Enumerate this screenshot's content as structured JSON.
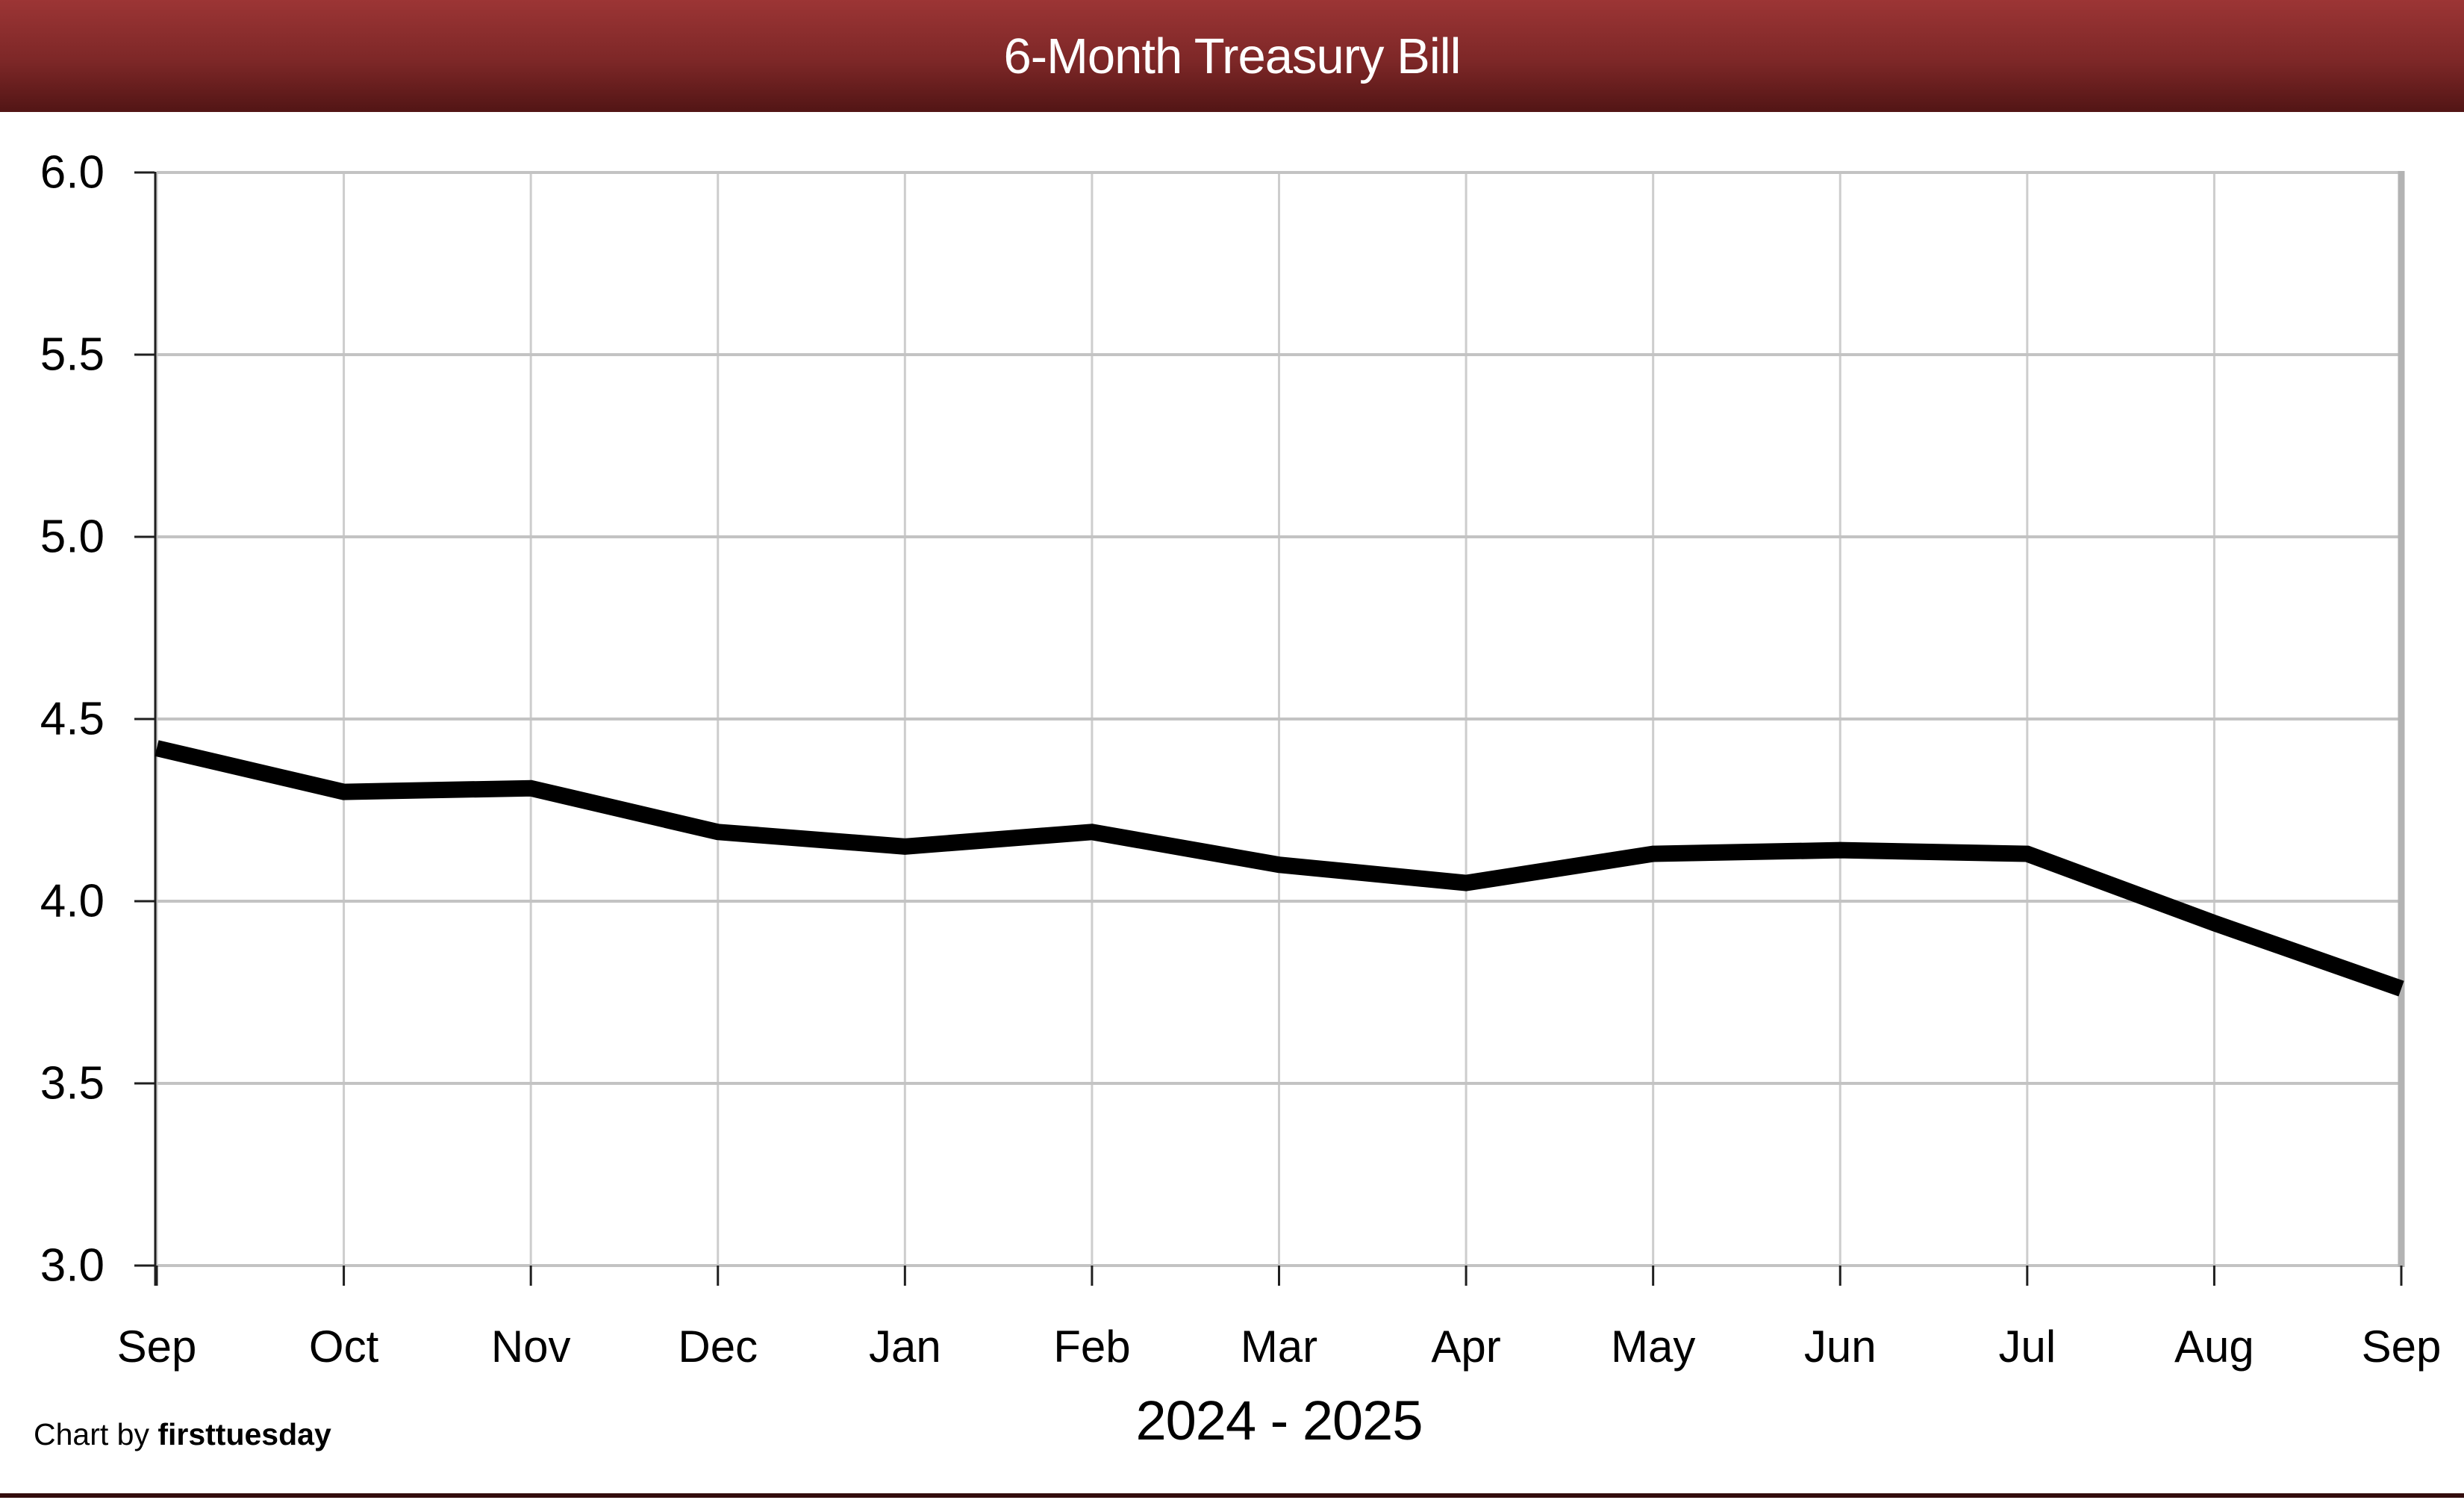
{
  "header": {
    "title": "6-Month Treasury Bill",
    "gradient_top": "#9c3535",
    "gradient_mid": "#7d2727",
    "gradient_bottom": "#521515",
    "text_color": "#ffffff"
  },
  "chart_data": {
    "type": "line",
    "title": "6-Month Treasury Bill",
    "categories": [
      "Sep",
      "Oct",
      "Nov",
      "Dec",
      "Jan",
      "Feb",
      "Mar",
      "Apr",
      "May",
      "Jun",
      "Jul",
      "Aug",
      "Sep"
    ],
    "values": [
      4.42,
      4.3,
      4.31,
      4.19,
      4.15,
      4.19,
      4.1,
      4.05,
      4.13,
      4.14,
      4.13,
      3.94,
      3.76
    ],
    "x_axis_label": "2024 - 2025",
    "xlabel": "2024 - 2025",
    "ylabel": "",
    "ylim": [
      3.0,
      6.0
    ],
    "ytick_step": 0.5,
    "ytick_labels": [
      "3.0",
      "3.5",
      "4.0",
      "4.5",
      "5.0",
      "5.5",
      "6.0"
    ],
    "grid": true,
    "legend_position": "none",
    "line_color": "#000000",
    "h_gridline_color": "#c3c3c3",
    "v_gridline_color": "#cdcdcd",
    "right_border_color": "#b3b3b3",
    "axis_color": "#1f1f1f"
  },
  "footer": {
    "prefix": "Chart by ",
    "brand": "firsttuesday"
  },
  "accent": {
    "bottom_bar_color": "#330d0d"
  }
}
